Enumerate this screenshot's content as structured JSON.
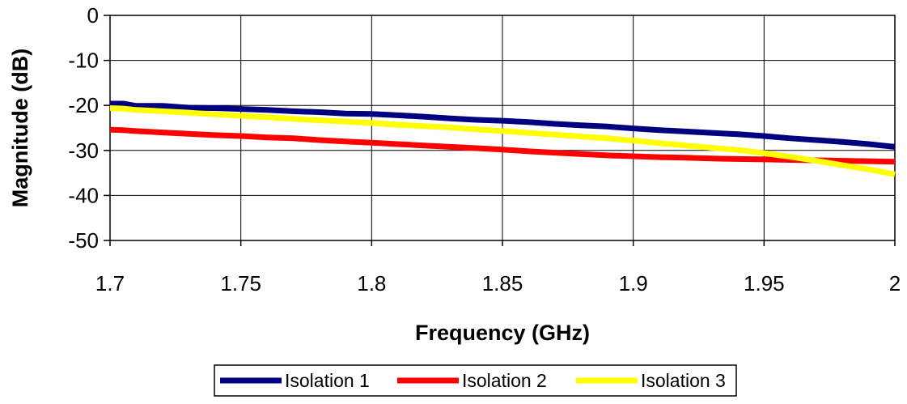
{
  "chart_data": {
    "type": "line",
    "title": "",
    "xlabel": "Frequency (GHz)",
    "ylabel": "Magnitude (dB)",
    "xlim": [
      1.7,
      2.0
    ],
    "ylim": [
      -50,
      0
    ],
    "x_ticks": [
      "1.7",
      "1.75",
      "1.8",
      "1.85",
      "1.9",
      "1.95",
      "2"
    ],
    "y_ticks": [
      "0",
      "-10",
      "-20",
      "-30",
      "-40",
      "-50"
    ],
    "grid": true,
    "legend_position": "bottom",
    "x": [
      1.7,
      1.705,
      1.71,
      1.72,
      1.73,
      1.74,
      1.75,
      1.76,
      1.77,
      1.78,
      1.79,
      1.8,
      1.81,
      1.82,
      1.83,
      1.84,
      1.85,
      1.86,
      1.87,
      1.88,
      1.89,
      1.9,
      1.91,
      1.92,
      1.93,
      1.94,
      1.95,
      1.96,
      1.97,
      1.98,
      1.99,
      2.0
    ],
    "series": [
      {
        "name": "Isolation 1",
        "color": "#000080",
        "values": [
          -19.6,
          -19.6,
          -20.1,
          -20.1,
          -20.5,
          -20.6,
          -20.8,
          -21.0,
          -21.3,
          -21.5,
          -21.8,
          -21.9,
          -22.2,
          -22.5,
          -22.9,
          -23.2,
          -23.4,
          -23.7,
          -24.1,
          -24.4,
          -24.7,
          -25.1,
          -25.5,
          -25.8,
          -26.1,
          -26.4,
          -26.8,
          -27.3,
          -27.7,
          -28.1,
          -28.6,
          -29.2
        ]
      },
      {
        "name": "Isolation 2",
        "color": "#ff0000",
        "values": [
          -25.4,
          -25.5,
          -25.7,
          -26.0,
          -26.3,
          -26.6,
          -26.8,
          -27.1,
          -27.3,
          -27.7,
          -28.0,
          -28.3,
          -28.6,
          -28.9,
          -29.2,
          -29.5,
          -29.8,
          -30.2,
          -30.5,
          -30.8,
          -31.1,
          -31.3,
          -31.5,
          -31.6,
          -31.8,
          -31.9,
          -32.0,
          -32.1,
          -32.2,
          -32.3,
          -32.4,
          -32.5
        ]
      },
      {
        "name": "Isolation 3",
        "color": "#ffff00",
        "values": [
          -20.6,
          -20.7,
          -21.0,
          -21.3,
          -21.6,
          -22.0,
          -22.3,
          -22.6,
          -23.0,
          -23.3,
          -23.6,
          -23.9,
          -24.3,
          -24.6,
          -24.9,
          -25.3,
          -25.7,
          -26.1,
          -26.5,
          -26.9,
          -27.3,
          -27.8,
          -28.4,
          -28.9,
          -29.4,
          -29.9,
          -30.6,
          -31.4,
          -32.3,
          -33.3,
          -34.2,
          -35.3
        ]
      }
    ]
  }
}
